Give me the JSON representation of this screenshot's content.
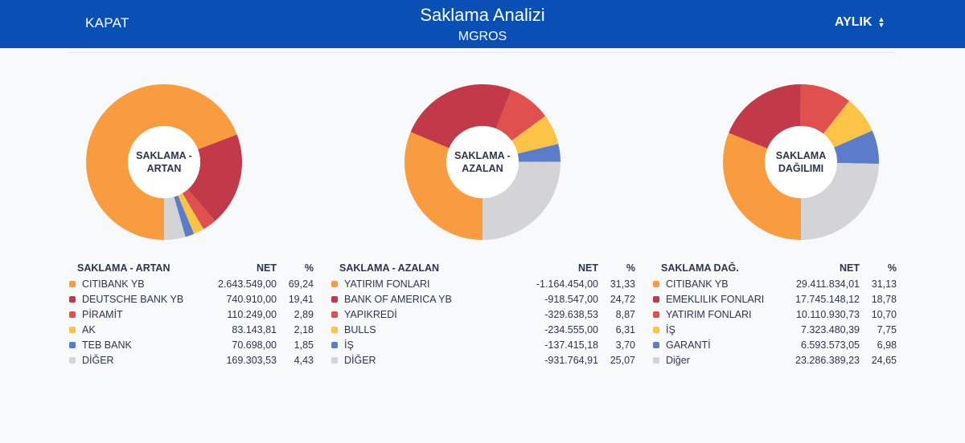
{
  "header": {
    "close_label": "KAPAT",
    "title": "Saklama Analizi",
    "subtitle": "MGROS",
    "period_label": "AYLIK",
    "period_icon": "sort-updown-icon",
    "background": "#0a4fb5"
  },
  "colors": [
    "#f89c3f",
    "#c23a4a",
    "#e0504f",
    "#fbc447",
    "#5b7cc9",
    "#d4d4d6"
  ],
  "panels": [
    {
      "id": "artan",
      "center_label": "SAKLAMA - ARTAN",
      "header_name": "SAKLAMA - ARTAN",
      "header_net": "NET",
      "header_pct": "%",
      "rows": [
        {
          "name": "CITIBANK YB",
          "net": "2.643.549,00",
          "pct": "69,24"
        },
        {
          "name": "DEUTSCHE BANK YB",
          "net": "740.910,00",
          "pct": "19,41"
        },
        {
          "name": "PİRAMİT",
          "net": "110.249,00",
          "pct": "2,89"
        },
        {
          "name": "AK",
          "net": "83.143,81",
          "pct": "2,18"
        },
        {
          "name": "TEB BANK",
          "net": "70.698,00",
          "pct": "1,85"
        },
        {
          "name": "DİĞER",
          "net": "169.303,53",
          "pct": "4,43"
        }
      ],
      "chart_data": {
        "type": "pie",
        "categories": [
          "CITIBANK YB",
          "DEUTSCHE BANK YB",
          "PİRAMİT",
          "AK",
          "TEB BANK",
          "DİĞER"
        ],
        "values": [
          69.24,
          19.41,
          2.89,
          2.18,
          1.85,
          4.43
        ]
      }
    },
    {
      "id": "azalan",
      "center_label": "SAKLAMA - AZALAN",
      "header_name": "SAKLAMA - AZALAN",
      "header_net": "NET",
      "header_pct": "%",
      "rows": [
        {
          "name": "YATIRIM FONLARI",
          "net": "-1.164.454,00",
          "pct": "31,33"
        },
        {
          "name": "BANK OF AMERICA YB",
          "net": "-918.547,00",
          "pct": "24,72"
        },
        {
          "name": "YAPIKREDİ",
          "net": "-329.638,53",
          "pct": "8,87"
        },
        {
          "name": "BULLS",
          "net": "-234.555,00",
          "pct": "6,31"
        },
        {
          "name": "İŞ",
          "net": "-137.415,18",
          "pct": "3,70"
        },
        {
          "name": "DİĞER",
          "net": "-931.764,91",
          "pct": "25,07"
        }
      ],
      "chart_data": {
        "type": "pie",
        "categories": [
          "YATIRIM FONLARI",
          "BANK OF AMERICA YB",
          "YAPIKREDİ",
          "BULLS",
          "İŞ",
          "DİĞER"
        ],
        "values": [
          31.33,
          24.72,
          8.87,
          6.31,
          3.7,
          25.07
        ]
      }
    },
    {
      "id": "dagilim",
      "center_label": "SAKLAMA DAĞILIMI",
      "header_name": "SAKLAMA DAĞ.",
      "header_net": "NET",
      "header_pct": "%",
      "rows": [
        {
          "name": "CITIBANK YB",
          "net": "29.411.834,01",
          "pct": "31,13"
        },
        {
          "name": "EMEKLILIK FONLARI",
          "net": "17.745.148,12",
          "pct": "18,78"
        },
        {
          "name": "YATIRIM FONLARI",
          "net": "10.110.930,73",
          "pct": "10,70"
        },
        {
          "name": "İŞ",
          "net": "7.323.480,39",
          "pct": "7,75"
        },
        {
          "name": "GARANTİ",
          "net": "6.593.573,05",
          "pct": "6,98"
        },
        {
          "name": "Diğer",
          "net": "23.286.389,23",
          "pct": "24,65"
        }
      ],
      "chart_data": {
        "type": "pie",
        "categories": [
          "CITIBANK YB",
          "EMEKLILIK FONLARI",
          "YATIRIM FONLARI",
          "İŞ",
          "GARANTİ",
          "Diğer"
        ],
        "values": [
          31.13,
          18.78,
          10.7,
          7.75,
          6.98,
          24.65
        ]
      }
    }
  ]
}
